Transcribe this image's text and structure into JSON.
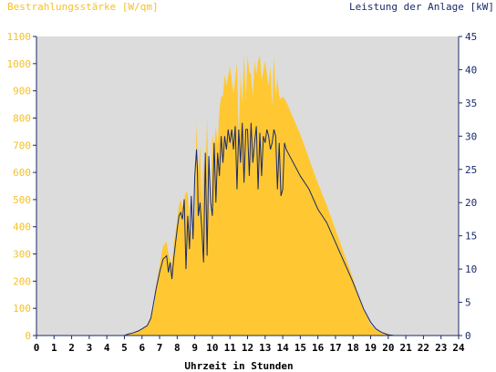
{
  "chart_data": {
    "type": "area",
    "y_left_label": "Bestrahlungsstärke [W/qm]",
    "y_right_label": "Leistung der Anlage [kW]",
    "xlabel": "Uhrzeit in Stunden",
    "xlim": [
      0,
      24
    ],
    "ylim_left": [
      0,
      1100
    ],
    "ylim_right": [
      0,
      45
    ],
    "x_ticks": [
      "0",
      "1",
      "2",
      "3",
      "4",
      "5",
      "6",
      "7",
      "8",
      "9",
      "10",
      "11",
      "12",
      "13",
      "14",
      "15",
      "16",
      "17",
      "18",
      "19",
      "20",
      "21",
      "22",
      "23",
      "24"
    ],
    "y_left_ticks": [
      "0",
      "100",
      "200",
      "300",
      "400",
      "500",
      "600",
      "700",
      "800",
      "900",
      "1000",
      "1100"
    ],
    "y_right_ticks": [
      "0",
      "5",
      "10",
      "15",
      "20",
      "25",
      "30",
      "35",
      "40",
      "45"
    ],
    "grid": false,
    "colors": {
      "plot_background": "#dcdcdc",
      "irradiance": "#ffc832",
      "power": "#1a2a6a",
      "left_axis_text": "#f6c026",
      "right_axis_text": "#1a2a6a"
    },
    "series": [
      {
        "name": "Bestrahlungsstärke [W/qm]",
        "axis": "left",
        "style": "area",
        "x": [
          0,
          5,
          5.2,
          5.5,
          5.8,
          6,
          6.3,
          6.5,
          6.7,
          6.8,
          7,
          7.2,
          7.4,
          7.5,
          7.7,
          7.8,
          8,
          8.1,
          8.2,
          8.3,
          8.5,
          8.6,
          8.7,
          8.8,
          8.9,
          9,
          9.1,
          9.2,
          9.3,
          9.4,
          9.5,
          9.6,
          9.7,
          9.8,
          9.9,
          10,
          10.1,
          10.2,
          10.3,
          10.4,
          10.5,
          10.6,
          10.7,
          10.8,
          11,
          11.2,
          11.4,
          11.5,
          11.6,
          11.7,
          11.8,
          11.9,
          12,
          12.1,
          12.2,
          12.3,
          12.4,
          12.5,
          12.6,
          12.7,
          12.8,
          13,
          13.1,
          13.2,
          13.3,
          13.4,
          13.5,
          13.6,
          13.7,
          13.8,
          13.9,
          14,
          14.2,
          14.4,
          14.6,
          14.8,
          15,
          15.5,
          16,
          16.5,
          17,
          17.5,
          18,
          18.5,
          19,
          19.3,
          19.6,
          19.8,
          20,
          20.3,
          20.6,
          24
        ],
        "values": [
          0,
          0,
          5,
          12,
          18,
          25,
          40,
          70,
          110,
          180,
          260,
          330,
          345,
          300,
          260,
          340,
          420,
          480,
          500,
          470,
          530,
          520,
          420,
          380,
          400,
          440,
          780,
          600,
          700,
          480,
          650,
          560,
          800,
          490,
          440,
          740,
          690,
          770,
          700,
          830,
          880,
          880,
          960,
          920,
          990,
          890,
          1000,
          720,
          960,
          850,
          1040,
          860,
          1030,
          970,
          960,
          880,
          1010,
          960,
          1010,
          1030,
          940,
          1010,
          960,
          920,
          990,
          840,
          1030,
          880,
          950,
          880,
          870,
          880,
          860,
          830,
          800,
          770,
          740,
          650,
          560,
          480,
          390,
          300,
          210,
          110,
          40,
          20,
          12,
          8,
          5,
          2,
          0,
          0
        ]
      },
      {
        "name": "Leistung der Anlage [kW]",
        "axis": "right",
        "style": "line",
        "x": [
          0,
          5,
          5.2,
          5.5,
          5.8,
          6,
          6.3,
          6.5,
          6.6,
          6.8,
          7,
          7.2,
          7.4,
          7.5,
          7.6,
          7.7,
          7.8,
          8,
          8.1,
          8.2,
          8.3,
          8.4,
          8.5,
          8.6,
          8.7,
          8.8,
          8.9,
          9,
          9.1,
          9.15,
          9.2,
          9.3,
          9.4,
          9.5,
          9.6,
          9.7,
          9.8,
          9.9,
          10,
          10.1,
          10.2,
          10.3,
          10.4,
          10.5,
          10.6,
          10.7,
          10.8,
          10.9,
          11,
          11.1,
          11.2,
          11.3,
          11.4,
          11.5,
          11.6,
          11.7,
          11.8,
          11.9,
          12,
          12.1,
          12.2,
          12.3,
          12.4,
          12.5,
          12.6,
          12.7,
          12.8,
          12.9,
          13,
          13.1,
          13.2,
          13.3,
          13.4,
          13.5,
          13.6,
          13.7,
          13.8,
          13.9,
          14,
          14.1,
          14.2,
          14.4,
          14.6,
          14.8,
          15,
          15.5,
          16,
          16.5,
          17,
          17.5,
          18,
          18.3,
          18.6,
          19,
          19.3,
          19.6,
          20,
          20.2,
          20.3,
          24
        ],
        "values": [
          0,
          0,
          0.2,
          0.4,
          0.7,
          1,
          1.5,
          2.6,
          4,
          7,
          9.5,
          11.5,
          12,
          9.5,
          11,
          8.5,
          11.5,
          16,
          18,
          18.5,
          17.5,
          20.5,
          10,
          18,
          13,
          21,
          14.5,
          24,
          28,
          25,
          18,
          20,
          16,
          11,
          27.5,
          12,
          27,
          20,
          18,
          29,
          20,
          27.5,
          24,
          30,
          26,
          30,
          28,
          31,
          29,
          31,
          28,
          31.5,
          22,
          31,
          26,
          32,
          23,
          31,
          31,
          24,
          32,
          26,
          29,
          31.5,
          22,
          30.5,
          24,
          30,
          29,
          31,
          30,
          28,
          29,
          31,
          30,
          22,
          29,
          21,
          22,
          29,
          28,
          27,
          26,
          25,
          24,
          22,
          19,
          17,
          14,
          11,
          8,
          6,
          4,
          2,
          1,
          0.5,
          0.1,
          0.05,
          0,
          0
        ]
      }
    ]
  }
}
